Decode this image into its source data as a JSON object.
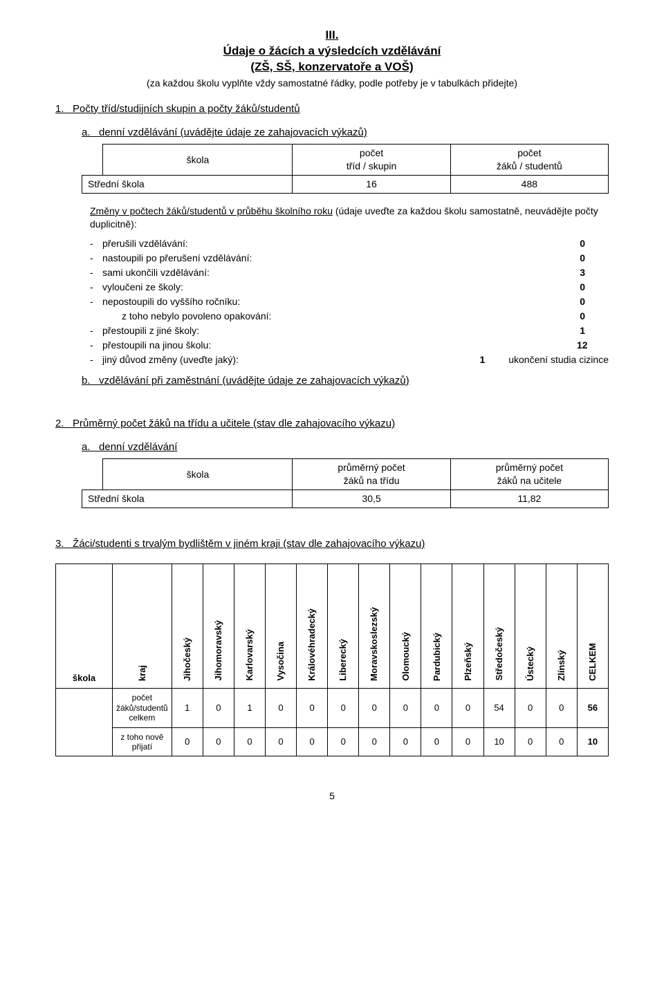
{
  "header": {
    "roman": "III.",
    "title": "Údaje o žácích a výsledcích vzdělávání",
    "subtitle": "(ZŠ, SŠ, konzervatoře a VOŠ)",
    "note": "(za každou školu vyplňte vždy samostatné řádky, podle potřeby je v tabulkách přidejte)"
  },
  "section1": {
    "num": "1.",
    "title": "Počty tříd/studijních skupin a počty žáků/studentů",
    "a": {
      "letter": "a.",
      "title": "denní vzdělávání (uvádějte údaje ze zahajovacích výkazů)",
      "table": {
        "h_skola": "škola",
        "h_trid": "počet\ntříd / skupin",
        "h_zaku": "počet\nžáků / studentů",
        "row_label": "Střední škola",
        "trid": "16",
        "zaku": "488"
      },
      "changes": {
        "lead": "Změny v počtech žáků/studentů v průběhu školního roku",
        "lead_tail": " (údaje uveďte za každou školu samostatně, neuvádějte počty duplicitně):",
        "items": [
          {
            "label": "přerušili vzdělávání:",
            "value": "0"
          },
          {
            "label": "nastoupili po přerušení vzdělávání:",
            "value": "0"
          },
          {
            "label": "sami ukončili vzdělávání:",
            "value": "3"
          },
          {
            "label": "vyloučeni ze školy:",
            "value": "0"
          },
          {
            "label": "nepostoupili do vyššího ročníku:",
            "value": "0"
          },
          {
            "label": "z toho nebylo povoleno opakování:",
            "value": "0",
            "sub": true
          },
          {
            "label": "přestoupili z jiné školy:",
            "value": "1"
          },
          {
            "label": "přestoupili na jinou školu:",
            "value": "12"
          },
          {
            "label": "jiný důvod změny (uveďte jaký):",
            "value": "1",
            "note": "ukončení studia cizince"
          }
        ]
      }
    },
    "b": {
      "letter": "b.",
      "title": "vzdělávání při zaměstnání (uvádějte údaje ze zahajovacích výkazů)"
    }
  },
  "section2": {
    "num": "2.",
    "title": "Průměrný počet žáků na třídu a učitele (stav dle zahajovacího výkazu)",
    "a": {
      "letter": "a.",
      "title": "denní vzdělávání",
      "table": {
        "h_skola": "škola",
        "h_tridu": "průměrný počet\nžáků na třídu",
        "h_ucitele": "průměrný počet\nžáků na učitele",
        "row_label": "Střední škola",
        "tridu": "30,5",
        "ucitele": "11,82"
      }
    }
  },
  "section3": {
    "num": "3.",
    "title": "Žáci/studenti s trvalým bydlištěm v jiném kraji (stav dle zahajovacího výkazu)",
    "table": {
      "h_skola": "škola",
      "h_kraj": "kraj",
      "cols": [
        "Jihočeský",
        "Jihomoravský",
        "Karlovarský",
        "Vysočina",
        "Královéhradecký",
        "Liberecký",
        "Moravskoslezský",
        "Olomoucký",
        "Pardubický",
        "Plzeňský",
        "Středočeský",
        "Ústecký",
        "Zlínský",
        "CELKEM"
      ],
      "row1_label": "počet\nžáků/studentů\ncelkem",
      "row2_label": "z toho nově\npřijatí",
      "row1": [
        "1",
        "0",
        "1",
        "0",
        "0",
        "0",
        "0",
        "0",
        "0",
        "0",
        "54",
        "0",
        "0",
        "56"
      ],
      "row2": [
        "0",
        "0",
        "0",
        "0",
        "0",
        "0",
        "0",
        "0",
        "0",
        "0",
        "10",
        "0",
        "0",
        "10"
      ]
    }
  },
  "pagenum": "5",
  "style": {
    "text_color": "#000000",
    "background": "#ffffff",
    "border_color": "#000000"
  }
}
